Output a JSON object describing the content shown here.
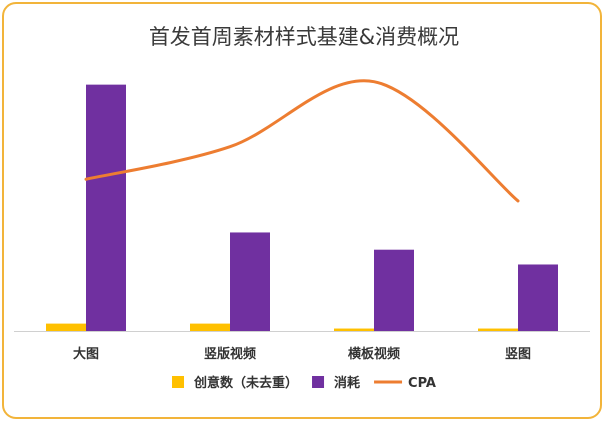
{
  "chart_data": {
    "type": "bar",
    "title": "首发首周素材样式基建&消费概况",
    "categories": [
      "大图",
      "竖版视频",
      "横板视频",
      "竖图"
    ],
    "series": [
      {
        "name": "创意数（未去重）",
        "kind": "bar",
        "color": "#ffc000",
        "values": [
          3,
          3,
          1,
          1
        ]
      },
      {
        "name": "消耗",
        "kind": "bar",
        "color": "#7030a0",
        "values": [
          100,
          40,
          33,
          27
        ]
      },
      {
        "name": "CPA",
        "kind": "line",
        "smooth": true,
        "color": "#ed7d31",
        "values": [
          70,
          85,
          115,
          60
        ]
      }
    ],
    "ylim": [
      0,
      110
    ],
    "line_ylim": [
      0,
      125
    ],
    "grid": false,
    "legend_position": "bottom"
  }
}
